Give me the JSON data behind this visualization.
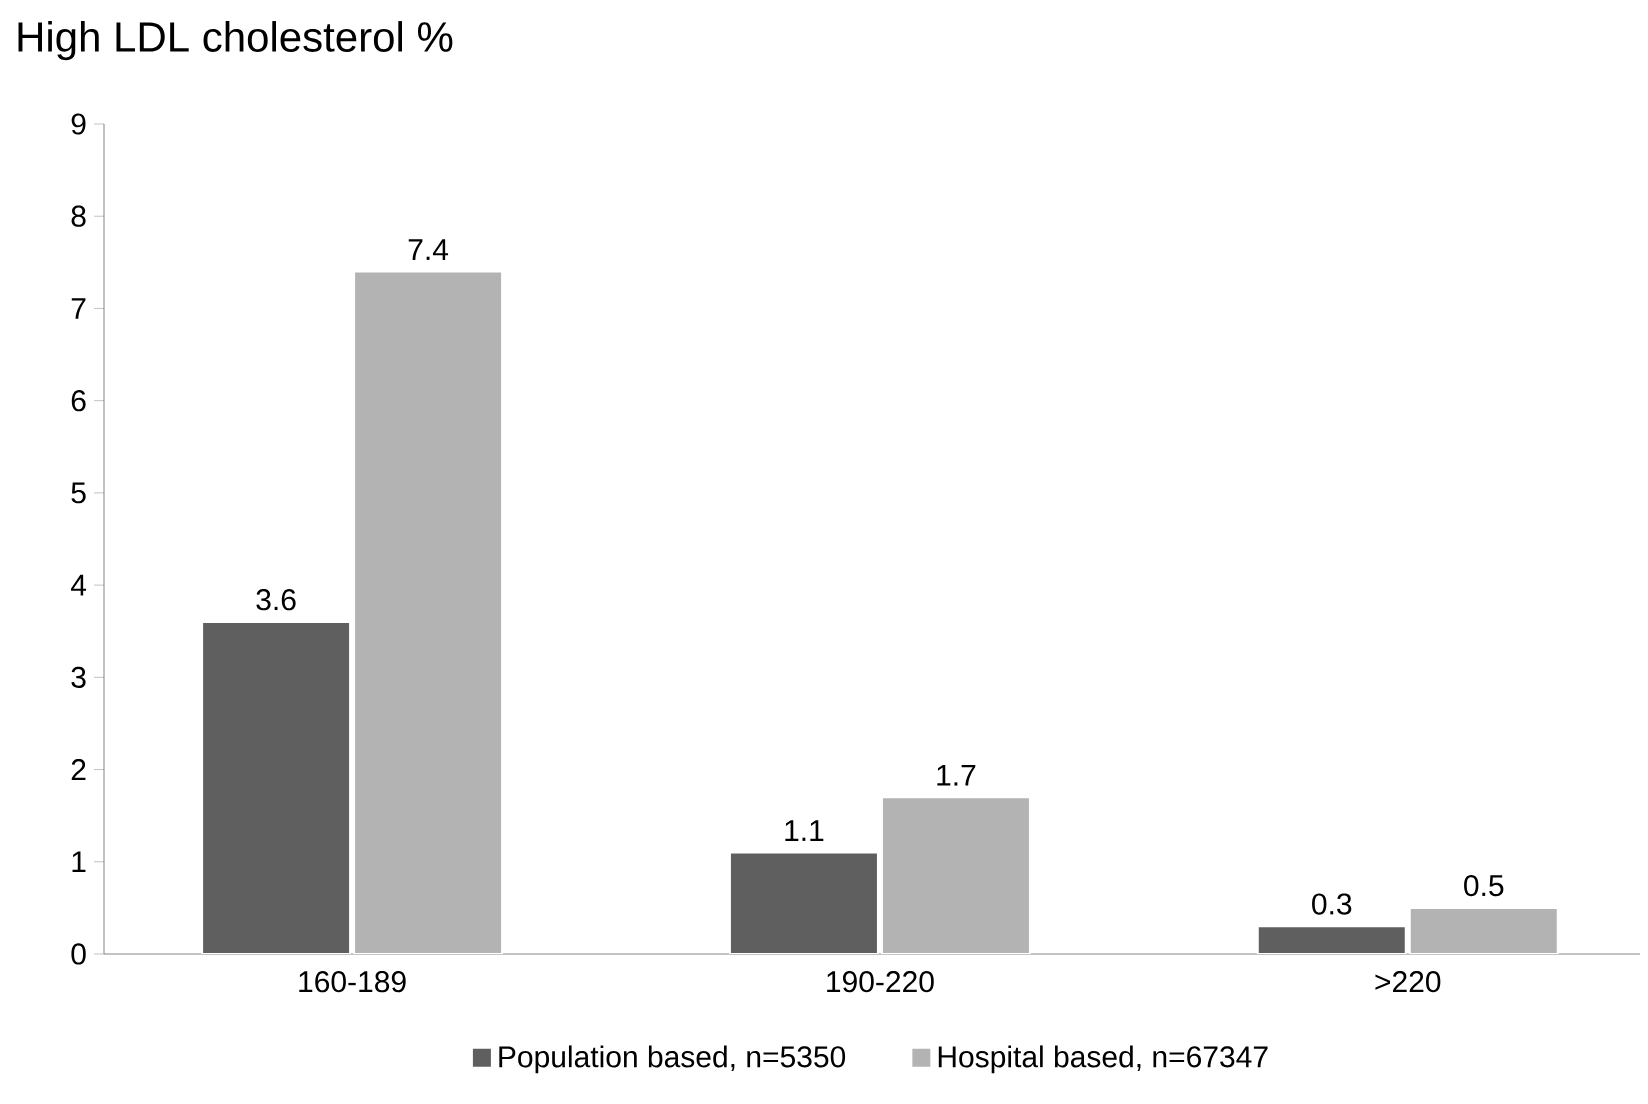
{
  "chart_data": {
    "type": "bar",
    "title": "High LDL cholesterol %",
    "categories": [
      "160-189",
      "190-220",
      ">220"
    ],
    "series": [
      {
        "name": "Population based, n=5350",
        "color": "#5f5f5f",
        "values": [
          3.6,
          1.1,
          0.3
        ]
      },
      {
        "name": "Hospital based, n=67347",
        "color": "#b3b3b3",
        "values": [
          7.4,
          1.7,
          0.5
        ]
      }
    ],
    "ylim": [
      0,
      9
    ],
    "yticks": [
      0,
      1,
      2,
      3,
      4,
      5,
      6,
      7,
      8,
      9
    ],
    "data_labels": true,
    "legend": "bottom",
    "grid": false
  }
}
